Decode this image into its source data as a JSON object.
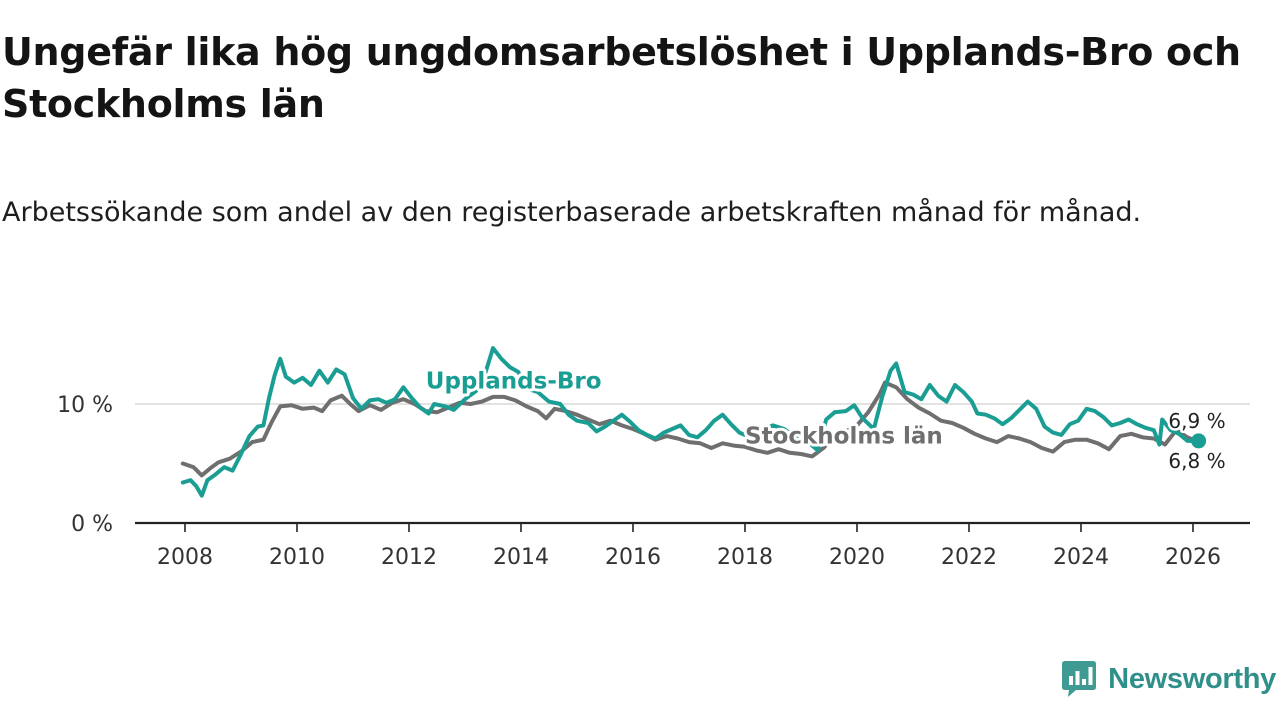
{
  "title": "Ungefär lika hög ungdomsarbetslöshet i Upplands-Bro och Stockholms län",
  "subtitle": "Arbetssökande som andel av den registerbaserade arbetskraften månad för månad.",
  "brand": {
    "name": "Newsworthy",
    "icon": "newsworthy-logo-icon",
    "color": "#2f8f8a"
  },
  "chart_data": {
    "type": "line",
    "title": "Ungefär lika hög ungdomsarbetslöshet i Upplands-Bro och Stockholms län",
    "xlabel": "",
    "ylabel": "",
    "xlim": [
      2007.4,
      2027.1
    ],
    "ylim": [
      0,
      14
    ],
    "x_ticks": [
      2008,
      2010,
      2012,
      2014,
      2016,
      2018,
      2020,
      2022,
      2024,
      2026
    ],
    "x_tick_labels": [
      "2008",
      "2010",
      "2012",
      "2014",
      "2016",
      "2018",
      "2020",
      "2022",
      "2024",
      "2026"
    ],
    "y_ticks": [
      0,
      10
    ],
    "y_tick_labels": [
      "0 %",
      "10 %"
    ],
    "grid": "horizontal",
    "series": [
      {
        "name": "Upplands-Bro",
        "color": "#1a9e94",
        "label_x": 2012.3,
        "label_y": 11.3,
        "end_label": "6,9 %",
        "points": [
          [
            2007.96,
            3.4
          ],
          [
            2008.1,
            3.6
          ],
          [
            2008.2,
            3.1
          ],
          [
            2008.3,
            2.3
          ],
          [
            2008.4,
            3.6
          ],
          [
            2008.55,
            4.1
          ],
          [
            2008.7,
            4.7
          ],
          [
            2008.85,
            4.4
          ],
          [
            2009.0,
            5.8
          ],
          [
            2009.15,
            7.3
          ],
          [
            2009.3,
            8.1
          ],
          [
            2009.4,
            8.2
          ],
          [
            2009.5,
            10.5
          ],
          [
            2009.6,
            12.4
          ],
          [
            2009.7,
            13.8
          ],
          [
            2009.8,
            12.3
          ],
          [
            2009.95,
            11.8
          ],
          [
            2010.1,
            12.2
          ],
          [
            2010.25,
            11.6
          ],
          [
            2010.4,
            12.8
          ],
          [
            2010.55,
            11.8
          ],
          [
            2010.7,
            12.9
          ],
          [
            2010.85,
            12.5
          ],
          [
            2011.0,
            10.5
          ],
          [
            2011.15,
            9.6
          ],
          [
            2011.3,
            10.3
          ],
          [
            2011.45,
            10.4
          ],
          [
            2011.6,
            10.1
          ],
          [
            2011.75,
            10.4
          ],
          [
            2011.9,
            11.4
          ],
          [
            2012.05,
            10.5
          ],
          [
            2012.2,
            9.7
          ],
          [
            2012.35,
            9.2
          ],
          [
            2012.45,
            10.0
          ],
          [
            2012.65,
            9.8
          ],
          [
            2012.8,
            9.5
          ],
          [
            2013.0,
            10.4
          ],
          [
            2013.2,
            11.1
          ],
          [
            2013.35,
            12.4
          ],
          [
            2013.5,
            14.7
          ],
          [
            2013.65,
            13.8
          ],
          [
            2013.8,
            13.1
          ],
          [
            2013.95,
            12.7
          ],
          [
            2014.1,
            11.3
          ],
          [
            2014.3,
            11.0
          ],
          [
            2014.5,
            10.2
          ],
          [
            2014.7,
            10.0
          ],
          [
            2014.85,
            9.1
          ],
          [
            2015.0,
            8.6
          ],
          [
            2015.2,
            8.4
          ],
          [
            2015.35,
            7.7
          ],
          [
            2015.5,
            8.1
          ],
          [
            2015.65,
            8.6
          ],
          [
            2015.8,
            9.1
          ],
          [
            2015.95,
            8.5
          ],
          [
            2016.1,
            7.8
          ],
          [
            2016.25,
            7.4
          ],
          [
            2016.4,
            7.1
          ],
          [
            2016.55,
            7.6
          ],
          [
            2016.7,
            7.9
          ],
          [
            2016.85,
            8.2
          ],
          [
            2017.0,
            7.4
          ],
          [
            2017.15,
            7.2
          ],
          [
            2017.3,
            7.8
          ],
          [
            2017.45,
            8.6
          ],
          [
            2017.6,
            9.1
          ],
          [
            2017.75,
            8.3
          ],
          [
            2017.9,
            7.6
          ],
          [
            2018.1,
            7.2
          ],
          [
            2018.3,
            7.8
          ],
          [
            2018.5,
            8.2
          ],
          [
            2018.7,
            7.9
          ],
          [
            2018.9,
            7.2
          ],
          [
            2019.1,
            6.9
          ],
          [
            2019.3,
            6.1
          ],
          [
            2019.45,
            8.7
          ],
          [
            2019.6,
            9.3
          ],
          [
            2019.8,
            9.4
          ],
          [
            2019.95,
            9.9
          ],
          [
            2020.1,
            8.8
          ],
          [
            2020.3,
            7.9
          ],
          [
            2020.45,
            10.6
          ],
          [
            2020.6,
            12.8
          ],
          [
            2020.7,
            13.4
          ],
          [
            2020.85,
            11.0
          ],
          [
            2021.0,
            10.8
          ],
          [
            2021.15,
            10.4
          ],
          [
            2021.3,
            11.6
          ],
          [
            2021.45,
            10.7
          ],
          [
            2021.6,
            10.2
          ],
          [
            2021.75,
            11.6
          ],
          [
            2021.9,
            11.0
          ],
          [
            2022.05,
            10.2
          ],
          [
            2022.15,
            9.2
          ],
          [
            2022.3,
            9.1
          ],
          [
            2022.45,
            8.8
          ],
          [
            2022.6,
            8.3
          ],
          [
            2022.75,
            8.8
          ],
          [
            2022.9,
            9.5
          ],
          [
            2023.05,
            10.2
          ],
          [
            2023.2,
            9.6
          ],
          [
            2023.35,
            8.1
          ],
          [
            2023.5,
            7.6
          ],
          [
            2023.65,
            7.4
          ],
          [
            2023.8,
            8.3
          ],
          [
            2023.95,
            8.6
          ],
          [
            2024.1,
            9.6
          ],
          [
            2024.25,
            9.4
          ],
          [
            2024.4,
            8.9
          ],
          [
            2024.55,
            8.2
          ],
          [
            2024.7,
            8.4
          ],
          [
            2024.85,
            8.7
          ],
          [
            2025.0,
            8.3
          ],
          [
            2025.15,
            8.0
          ],
          [
            2025.3,
            7.8
          ],
          [
            2025.4,
            6.6
          ],
          [
            2025.45,
            8.7
          ],
          [
            2025.6,
            7.8
          ],
          [
            2025.75,
            7.5
          ],
          [
            2025.9,
            6.9
          ],
          [
            2026.1,
            6.9
          ]
        ]
      },
      {
        "name": "Stockholms län",
        "color": "#6f6f6f",
        "label_x": 2018.0,
        "label_y": 6.7,
        "end_label": "6,8 %",
        "points": [
          [
            2007.96,
            5.0
          ],
          [
            2008.15,
            4.7
          ],
          [
            2008.3,
            4.0
          ],
          [
            2008.45,
            4.6
          ],
          [
            2008.6,
            5.1
          ],
          [
            2008.8,
            5.4
          ],
          [
            2009.0,
            6.0
          ],
          [
            2009.2,
            6.8
          ],
          [
            2009.4,
            7.0
          ],
          [
            2009.55,
            8.5
          ],
          [
            2009.7,
            9.8
          ],
          [
            2009.9,
            9.9
          ],
          [
            2010.1,
            9.6
          ],
          [
            2010.3,
            9.7
          ],
          [
            2010.45,
            9.4
          ],
          [
            2010.6,
            10.3
          ],
          [
            2010.8,
            10.7
          ],
          [
            2010.95,
            10.0
          ],
          [
            2011.1,
            9.4
          ],
          [
            2011.3,
            9.9
          ],
          [
            2011.5,
            9.5
          ],
          [
            2011.7,
            10.1
          ],
          [
            2011.9,
            10.4
          ],
          [
            2012.1,
            10.0
          ],
          [
            2012.3,
            9.4
          ],
          [
            2012.5,
            9.3
          ],
          [
            2012.7,
            9.7
          ],
          [
            2012.9,
            10.1
          ],
          [
            2013.1,
            10.0
          ],
          [
            2013.3,
            10.2
          ],
          [
            2013.5,
            10.6
          ],
          [
            2013.7,
            10.6
          ],
          [
            2013.9,
            10.3
          ],
          [
            2014.1,
            9.8
          ],
          [
            2014.3,
            9.4
          ],
          [
            2014.45,
            8.8
          ],
          [
            2014.6,
            9.6
          ],
          [
            2014.8,
            9.4
          ],
          [
            2015.0,
            9.1
          ],
          [
            2015.2,
            8.7
          ],
          [
            2015.4,
            8.3
          ],
          [
            2015.6,
            8.6
          ],
          [
            2015.8,
            8.2
          ],
          [
            2016.0,
            7.9
          ],
          [
            2016.2,
            7.5
          ],
          [
            2016.4,
            7.0
          ],
          [
            2016.6,
            7.3
          ],
          [
            2016.8,
            7.1
          ],
          [
            2017.0,
            6.8
          ],
          [
            2017.2,
            6.7
          ],
          [
            2017.4,
            6.3
          ],
          [
            2017.6,
            6.7
          ],
          [
            2017.8,
            6.5
          ],
          [
            2018.0,
            6.4
          ],
          [
            2018.2,
            6.1
          ],
          [
            2018.4,
            5.9
          ],
          [
            2018.6,
            6.2
          ],
          [
            2018.8,
            5.9
          ],
          [
            2019.0,
            5.8
          ],
          [
            2019.2,
            5.6
          ],
          [
            2019.4,
            6.3
          ],
          [
            2019.6,
            7.3
          ],
          [
            2019.8,
            7.7
          ],
          [
            2020.0,
            8.2
          ],
          [
            2020.2,
            9.3
          ],
          [
            2020.4,
            10.8
          ],
          [
            2020.5,
            11.8
          ],
          [
            2020.7,
            11.4
          ],
          [
            2020.9,
            10.4
          ],
          [
            2021.1,
            9.7
          ],
          [
            2021.3,
            9.2
          ],
          [
            2021.5,
            8.6
          ],
          [
            2021.7,
            8.4
          ],
          [
            2021.9,
            8.0
          ],
          [
            2022.1,
            7.5
          ],
          [
            2022.3,
            7.1
          ],
          [
            2022.5,
            6.8
          ],
          [
            2022.7,
            7.3
          ],
          [
            2022.9,
            7.1
          ],
          [
            2023.1,
            6.8
          ],
          [
            2023.3,
            6.3
          ],
          [
            2023.5,
            6.0
          ],
          [
            2023.7,
            6.8
          ],
          [
            2023.9,
            7.0
          ],
          [
            2024.1,
            7.0
          ],
          [
            2024.3,
            6.7
          ],
          [
            2024.5,
            6.2
          ],
          [
            2024.7,
            7.3
          ],
          [
            2024.9,
            7.5
          ],
          [
            2025.1,
            7.2
          ],
          [
            2025.3,
            7.1
          ],
          [
            2025.5,
            6.6
          ],
          [
            2025.7,
            7.8
          ],
          [
            2025.9,
            7.2
          ],
          [
            2026.1,
            6.8
          ]
        ]
      }
    ]
  }
}
